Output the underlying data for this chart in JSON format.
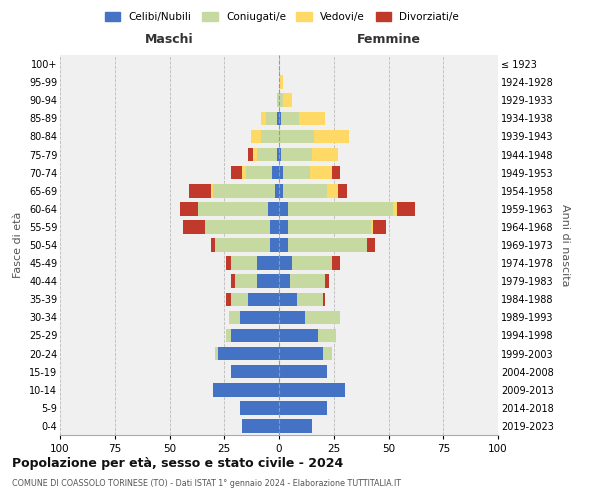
{
  "age_groups": [
    "0-4",
    "5-9",
    "10-14",
    "15-19",
    "20-24",
    "25-29",
    "30-34",
    "35-39",
    "40-44",
    "45-49",
    "50-54",
    "55-59",
    "60-64",
    "65-69",
    "70-74",
    "75-79",
    "80-84",
    "85-89",
    "90-94",
    "95-99",
    "100+"
  ],
  "birth_years": [
    "2019-2023",
    "2014-2018",
    "2009-2013",
    "2004-2008",
    "1999-2003",
    "1994-1998",
    "1989-1993",
    "1984-1988",
    "1979-1983",
    "1974-1978",
    "1969-1973",
    "1964-1968",
    "1959-1963",
    "1954-1958",
    "1949-1953",
    "1944-1948",
    "1939-1943",
    "1934-1938",
    "1929-1933",
    "1924-1928",
    "≤ 1923"
  ],
  "maschi": {
    "celibi": [
      17,
      18,
      30,
      22,
      28,
      22,
      18,
      14,
      10,
      10,
      4,
      4,
      5,
      2,
      3,
      1,
      0,
      1,
      0,
      0,
      0
    ],
    "coniugati": [
      0,
      0,
      0,
      0,
      1,
      2,
      5,
      8,
      10,
      12,
      25,
      30,
      32,
      28,
      12,
      9,
      8,
      5,
      1,
      0,
      0
    ],
    "vedovi": [
      0,
      0,
      0,
      0,
      0,
      0,
      0,
      0,
      0,
      0,
      0,
      0,
      0,
      1,
      2,
      2,
      5,
      2,
      0,
      0,
      0
    ],
    "divorziati": [
      0,
      0,
      0,
      0,
      0,
      0,
      0,
      2,
      2,
      2,
      2,
      10,
      8,
      10,
      5,
      2,
      0,
      0,
      0,
      0,
      0
    ]
  },
  "femmine": {
    "nubili": [
      15,
      22,
      30,
      22,
      20,
      18,
      12,
      8,
      5,
      6,
      4,
      4,
      4,
      2,
      2,
      1,
      0,
      1,
      0,
      0,
      0
    ],
    "coniugate": [
      0,
      0,
      0,
      0,
      4,
      8,
      16,
      12,
      16,
      18,
      36,
      38,
      48,
      20,
      12,
      14,
      16,
      8,
      2,
      0,
      0
    ],
    "vedove": [
      0,
      0,
      0,
      0,
      0,
      0,
      0,
      0,
      0,
      0,
      0,
      1,
      2,
      5,
      10,
      12,
      16,
      12,
      4,
      2,
      0
    ],
    "divorziate": [
      0,
      0,
      0,
      0,
      0,
      0,
      0,
      1,
      2,
      4,
      4,
      6,
      8,
      4,
      4,
      0,
      0,
      0,
      0,
      0,
      0
    ]
  },
  "colors": {
    "celibi": "#4472c4",
    "coniugati": "#c5d9a0",
    "vedovi": "#ffd966",
    "divorziati": "#c0392b"
  },
  "title": "Popolazione per età, sesso e stato civile - 2024",
  "subtitle": "COMUNE DI COASSOLO TORINESE (TO) - Dati ISTAT 1° gennaio 2024 - Elaborazione TUTTITALIA.IT",
  "xlabel_left": "Maschi",
  "xlabel_right": "Femmine",
  "ylabel_left": "Fasce di età",
  "ylabel_right": "Anni di nascita",
  "xlim": 100,
  "bg_color": "#ffffff",
  "plot_bg": "#f0f0f0"
}
